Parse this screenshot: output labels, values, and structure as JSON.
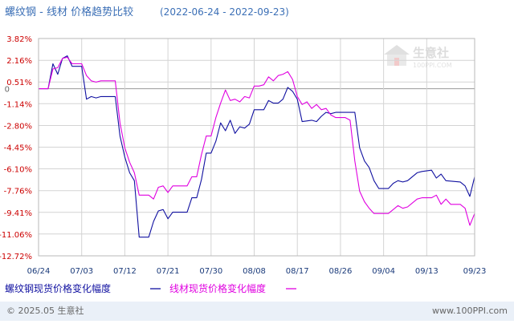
{
  "title": "螺纹钢 - 线材 价格趋势比较",
  "date_range": "(2022-06-24 - 2022-09-23)",
  "footer_left": "© 2025.05 生意社",
  "footer_right": "www.100PPI.com",
  "watermark_text": "生意社",
  "watermark_sub": "100PPI.COM",
  "colors": {
    "title": "#3b6fb6",
    "ytick": "#cc0000",
    "zero_label": "#666666",
    "xtick": "#1a3a7a",
    "grid": "#d4d4d4",
    "zero_line": "#999999",
    "frame": "#b8b8b8",
    "series1": "#1010a0",
    "series2": "#e000e0",
    "footer_bg": "#eaf0f8",
    "footer_text": "#666666"
  },
  "chart_data": {
    "type": "line",
    "ylabel_ticks": [
      "3.82%",
      "2.16%",
      "0.51%",
      "0",
      "-1.14%",
      "-2.80%",
      "-4.45%",
      "-6.10%",
      "-7.76%",
      "-9.41%",
      "-11.06%",
      "-12.72%"
    ],
    "ylim": [
      -12.72,
      3.82
    ],
    "x_tick_labels": [
      "06/24",
      "07/03",
      "07/12",
      "07/21",
      "07/30",
      "08/08",
      "08/17",
      "08/26",
      "09/04",
      "09/13",
      "09/23"
    ],
    "x_tick_days": [
      0,
      9,
      18,
      27,
      36,
      45,
      54,
      63,
      72,
      81,
      91
    ],
    "x_range_days": [
      0,
      91
    ],
    "grid": true,
    "legend_position": "bottom-left",
    "series": [
      {
        "name": "螺纹钢现货价格变化幅度",
        "color_key": "series1",
        "points": [
          [
            0,
            0
          ],
          [
            2,
            0
          ],
          [
            3,
            1.9
          ],
          [
            4,
            1.1
          ],
          [
            5,
            2.3
          ],
          [
            6,
            2.5
          ],
          [
            7,
            1.7
          ],
          [
            9,
            1.7
          ],
          [
            10,
            -0.8
          ],
          [
            11,
            -0.6
          ],
          [
            12,
            -0.7
          ],
          [
            13,
            -0.6
          ],
          [
            16,
            -0.6
          ],
          [
            17,
            -3.6
          ],
          [
            18,
            -5.2
          ],
          [
            19,
            -6.4
          ],
          [
            20,
            -7.0
          ],
          [
            21,
            -11.3
          ],
          [
            23,
            -11.3
          ],
          [
            24,
            -10.1
          ],
          [
            25,
            -9.3
          ],
          [
            26,
            -9.2
          ],
          [
            27,
            -9.9
          ],
          [
            28,
            -9.4
          ],
          [
            31,
            -9.4
          ],
          [
            32,
            -8.3
          ],
          [
            33,
            -8.3
          ],
          [
            34,
            -6.9
          ],
          [
            35,
            -4.9
          ],
          [
            36,
            -4.9
          ],
          [
            37,
            -4.0
          ],
          [
            38,
            -2.6
          ],
          [
            39,
            -3.2
          ],
          [
            40,
            -2.4
          ],
          [
            41,
            -3.4
          ],
          [
            42,
            -2.9
          ],
          [
            43,
            -3.0
          ],
          [
            44,
            -2.7
          ],
          [
            45,
            -1.6
          ],
          [
            47,
            -1.6
          ],
          [
            48,
            -0.9
          ],
          [
            49,
            -1.1
          ],
          [
            50,
            -1.1
          ],
          [
            51,
            -0.8
          ],
          [
            52,
            0.1
          ],
          [
            53,
            -0.2
          ],
          [
            54,
            -0.8
          ],
          [
            55,
            -2.5
          ],
          [
            57,
            -2.4
          ],
          [
            58,
            -2.5
          ],
          [
            59,
            -2.1
          ],
          [
            60,
            -1.8
          ],
          [
            61,
            -1.9
          ],
          [
            62,
            -1.8
          ],
          [
            66,
            -1.8
          ],
          [
            67,
            -4.5
          ],
          [
            68,
            -5.5
          ],
          [
            69,
            -6.0
          ],
          [
            70,
            -7.0
          ],
          [
            71,
            -7.6
          ],
          [
            73,
            -7.6
          ],
          [
            74,
            -7.2
          ],
          [
            75,
            -7.0
          ],
          [
            76,
            -7.1
          ],
          [
            77,
            -7.0
          ],
          [
            79,
            -6.4
          ],
          [
            80,
            -6.3
          ],
          [
            82,
            -6.2
          ],
          [
            83,
            -6.8
          ],
          [
            84,
            -6.5
          ],
          [
            85,
            -7.0
          ],
          [
            88,
            -7.1
          ],
          [
            89,
            -7.4
          ],
          [
            90,
            -8.2
          ],
          [
            91,
            -6.7
          ]
        ]
      },
      {
        "name": "线材现货价格变化幅度",
        "color_key": "series2",
        "points": [
          [
            0,
            0
          ],
          [
            2,
            0
          ],
          [
            3,
            1.5
          ],
          [
            4,
            1.6
          ],
          [
            5,
            2.3
          ],
          [
            6,
            2.4
          ],
          [
            7,
            1.9
          ],
          [
            9,
            1.9
          ],
          [
            10,
            1.0
          ],
          [
            11,
            0.6
          ],
          [
            12,
            0.5
          ],
          [
            13,
            0.6
          ],
          [
            16,
            0.6
          ],
          [
            17,
            -2.6
          ],
          [
            18,
            -4.5
          ],
          [
            19,
            -5.6
          ],
          [
            20,
            -6.4
          ],
          [
            21,
            -8.1
          ],
          [
            23,
            -8.1
          ],
          [
            24,
            -8.4
          ],
          [
            25,
            -7.5
          ],
          [
            26,
            -7.4
          ],
          [
            27,
            -7.9
          ],
          [
            28,
            -7.4
          ],
          [
            31,
            -7.4
          ],
          [
            32,
            -6.7
          ],
          [
            33,
            -6.7
          ],
          [
            34,
            -5.0
          ],
          [
            35,
            -3.6
          ],
          [
            36,
            -3.6
          ],
          [
            37,
            -2.2
          ],
          [
            38,
            -1.1
          ],
          [
            39,
            -0.1
          ],
          [
            40,
            -0.9
          ],
          [
            41,
            -0.8
          ],
          [
            42,
            -1.0
          ],
          [
            43,
            -0.6
          ],
          [
            44,
            -0.7
          ],
          [
            45,
            0.2
          ],
          [
            46,
            0.2
          ],
          [
            47,
            0.3
          ],
          [
            48,
            0.9
          ],
          [
            49,
            0.6
          ],
          [
            50,
            1.0
          ],
          [
            51,
            1.1
          ],
          [
            52,
            1.3
          ],
          [
            53,
            0.7
          ],
          [
            54,
            -0.6
          ],
          [
            55,
            -1.2
          ],
          [
            56,
            -1.0
          ],
          [
            57,
            -1.5
          ],
          [
            58,
            -1.2
          ],
          [
            59,
            -1.6
          ],
          [
            60,
            -1.5
          ],
          [
            61,
            -2.0
          ],
          [
            62,
            -2.2
          ],
          [
            64,
            -2.2
          ],
          [
            65,
            -2.4
          ],
          [
            66,
            -5.5
          ],
          [
            67,
            -7.8
          ],
          [
            68,
            -8.6
          ],
          [
            69,
            -9.1
          ],
          [
            70,
            -9.5
          ],
          [
            73,
            -9.5
          ],
          [
            74,
            -9.2
          ],
          [
            75,
            -8.9
          ],
          [
            76,
            -9.1
          ],
          [
            77,
            -9.0
          ],
          [
            79,
            -8.4
          ],
          [
            80,
            -8.3
          ],
          [
            82,
            -8.3
          ],
          [
            83,
            -8.1
          ],
          [
            84,
            -8.8
          ],
          [
            85,
            -8.4
          ],
          [
            86,
            -8.8
          ],
          [
            88,
            -8.8
          ],
          [
            89,
            -9.1
          ],
          [
            90,
            -10.4
          ],
          [
            91,
            -9.5
          ]
        ]
      }
    ]
  }
}
